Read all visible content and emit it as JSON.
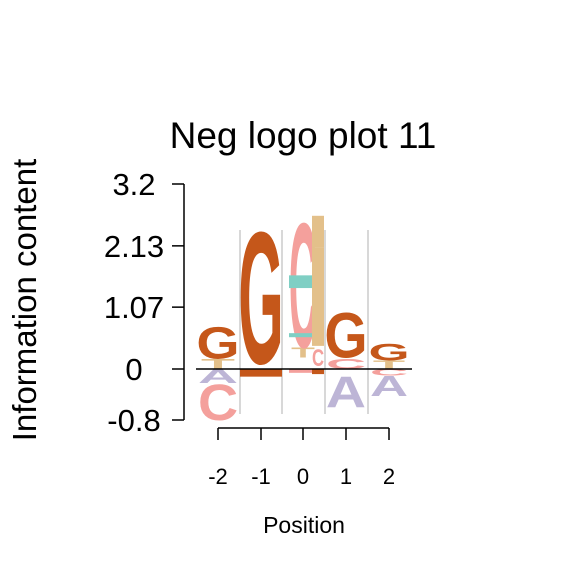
{
  "chart_data": {
    "type": "sequence-logo",
    "title": "Neg logo plot 11",
    "xlabel": "Position",
    "ylabel": "Information content",
    "yticks": [
      "3.2",
      "2.13",
      "1.07",
      "0",
      "-0.8"
    ],
    "ytick_values": [
      3.2,
      2.13,
      1.07,
      0,
      -0.8
    ],
    "xticks": [
      "-2",
      "-1",
      "0",
      "1",
      "2"
    ],
    "ylim": [
      -0.8,
      3.2
    ],
    "colors": {
      "G": "#c5571a",
      "C": "#f4a09c",
      "T": "#e3c08a",
      "A": "#bdb5d6",
      "teal": "#7fcfc4"
    },
    "positions": [
      {
        "pos": "-2",
        "above": [
          {
            "letter": "T",
            "bottom": 0.0,
            "top": 0.18,
            "color": "#e3c08a"
          },
          {
            "letter": "G",
            "bottom": 0.18,
            "top": 0.75,
            "color": "#c5571a"
          }
        ],
        "below": [
          {
            "letter": "A",
            "bottom": -0.22,
            "top": 0.0,
            "color": "#bdb5d6"
          },
          {
            "letter": "C",
            "bottom": -0.8,
            "top": -0.22,
            "color": "#f4a09c"
          }
        ]
      },
      {
        "pos": "-1",
        "above": [
          {
            "letter": "G",
            "bottom": 0.1,
            "top": 2.45,
            "color": "#c5571a"
          }
        ],
        "below": [
          {
            "letter": "",
            "bottom": -0.12,
            "top": 0.0,
            "color": "#c5571a"
          }
        ]
      },
      {
        "pos": "0",
        "above": [
          {
            "letter": "T",
            "bottom": 0.2,
            "top": 0.38,
            "color": "#e3c08a"
          },
          {
            "letter": "C",
            "bottom": 0.38,
            "top": 2.6,
            "color": "#f4a09c"
          },
          {
            "letter": "",
            "bottom": 1.4,
            "top": 1.62,
            "color": "#7fcfc4"
          },
          {
            "letter": "",
            "bottom": 0.55,
            "top": 0.62,
            "color": "#7fcfc4"
          }
        ],
        "below": [
          {
            "letter": "",
            "bottom": -0.06,
            "top": 0.0,
            "color": "#f4a09c"
          }
        ]
      },
      {
        "pos": "0.5",
        "above": [
          {
            "letter": "C",
            "bottom": 0.05,
            "top": 0.35,
            "color": "#f4a09c"
          },
          {
            "letter": "",
            "bottom": 0.4,
            "top": 2.1,
            "color": "#e3c08a"
          },
          {
            "letter": "",
            "bottom": 2.1,
            "top": 2.65,
            "color": "#e3c08a"
          }
        ],
        "below": [
          {
            "letter": "",
            "bottom": -0.08,
            "top": 0.0,
            "color": "#c5571a"
          }
        ]
      },
      {
        "pos": "1",
        "above": [
          {
            "letter": "C",
            "bottom": 0.0,
            "top": 0.18,
            "color": "#f4a09c"
          },
          {
            "letter": "G",
            "bottom": 0.2,
            "top": 1.0,
            "color": "#c5571a"
          }
        ],
        "below": [
          {
            "letter": "A",
            "bottom": -0.6,
            "top": -0.1,
            "color": "#bdb5d6"
          }
        ]
      },
      {
        "pos": "2",
        "above": [
          {
            "letter": "T",
            "bottom": 0.0,
            "top": 0.15,
            "color": "#e3c08a"
          },
          {
            "letter": "G",
            "bottom": 0.15,
            "top": 0.45,
            "color": "#c5571a"
          }
        ],
        "below": [
          {
            "letter": "C",
            "bottom": -0.1,
            "top": 0.0,
            "color": "#f4a09c"
          },
          {
            "letter": "A",
            "bottom": -0.42,
            "top": -0.1,
            "color": "#bdb5d6"
          }
        ]
      }
    ]
  }
}
